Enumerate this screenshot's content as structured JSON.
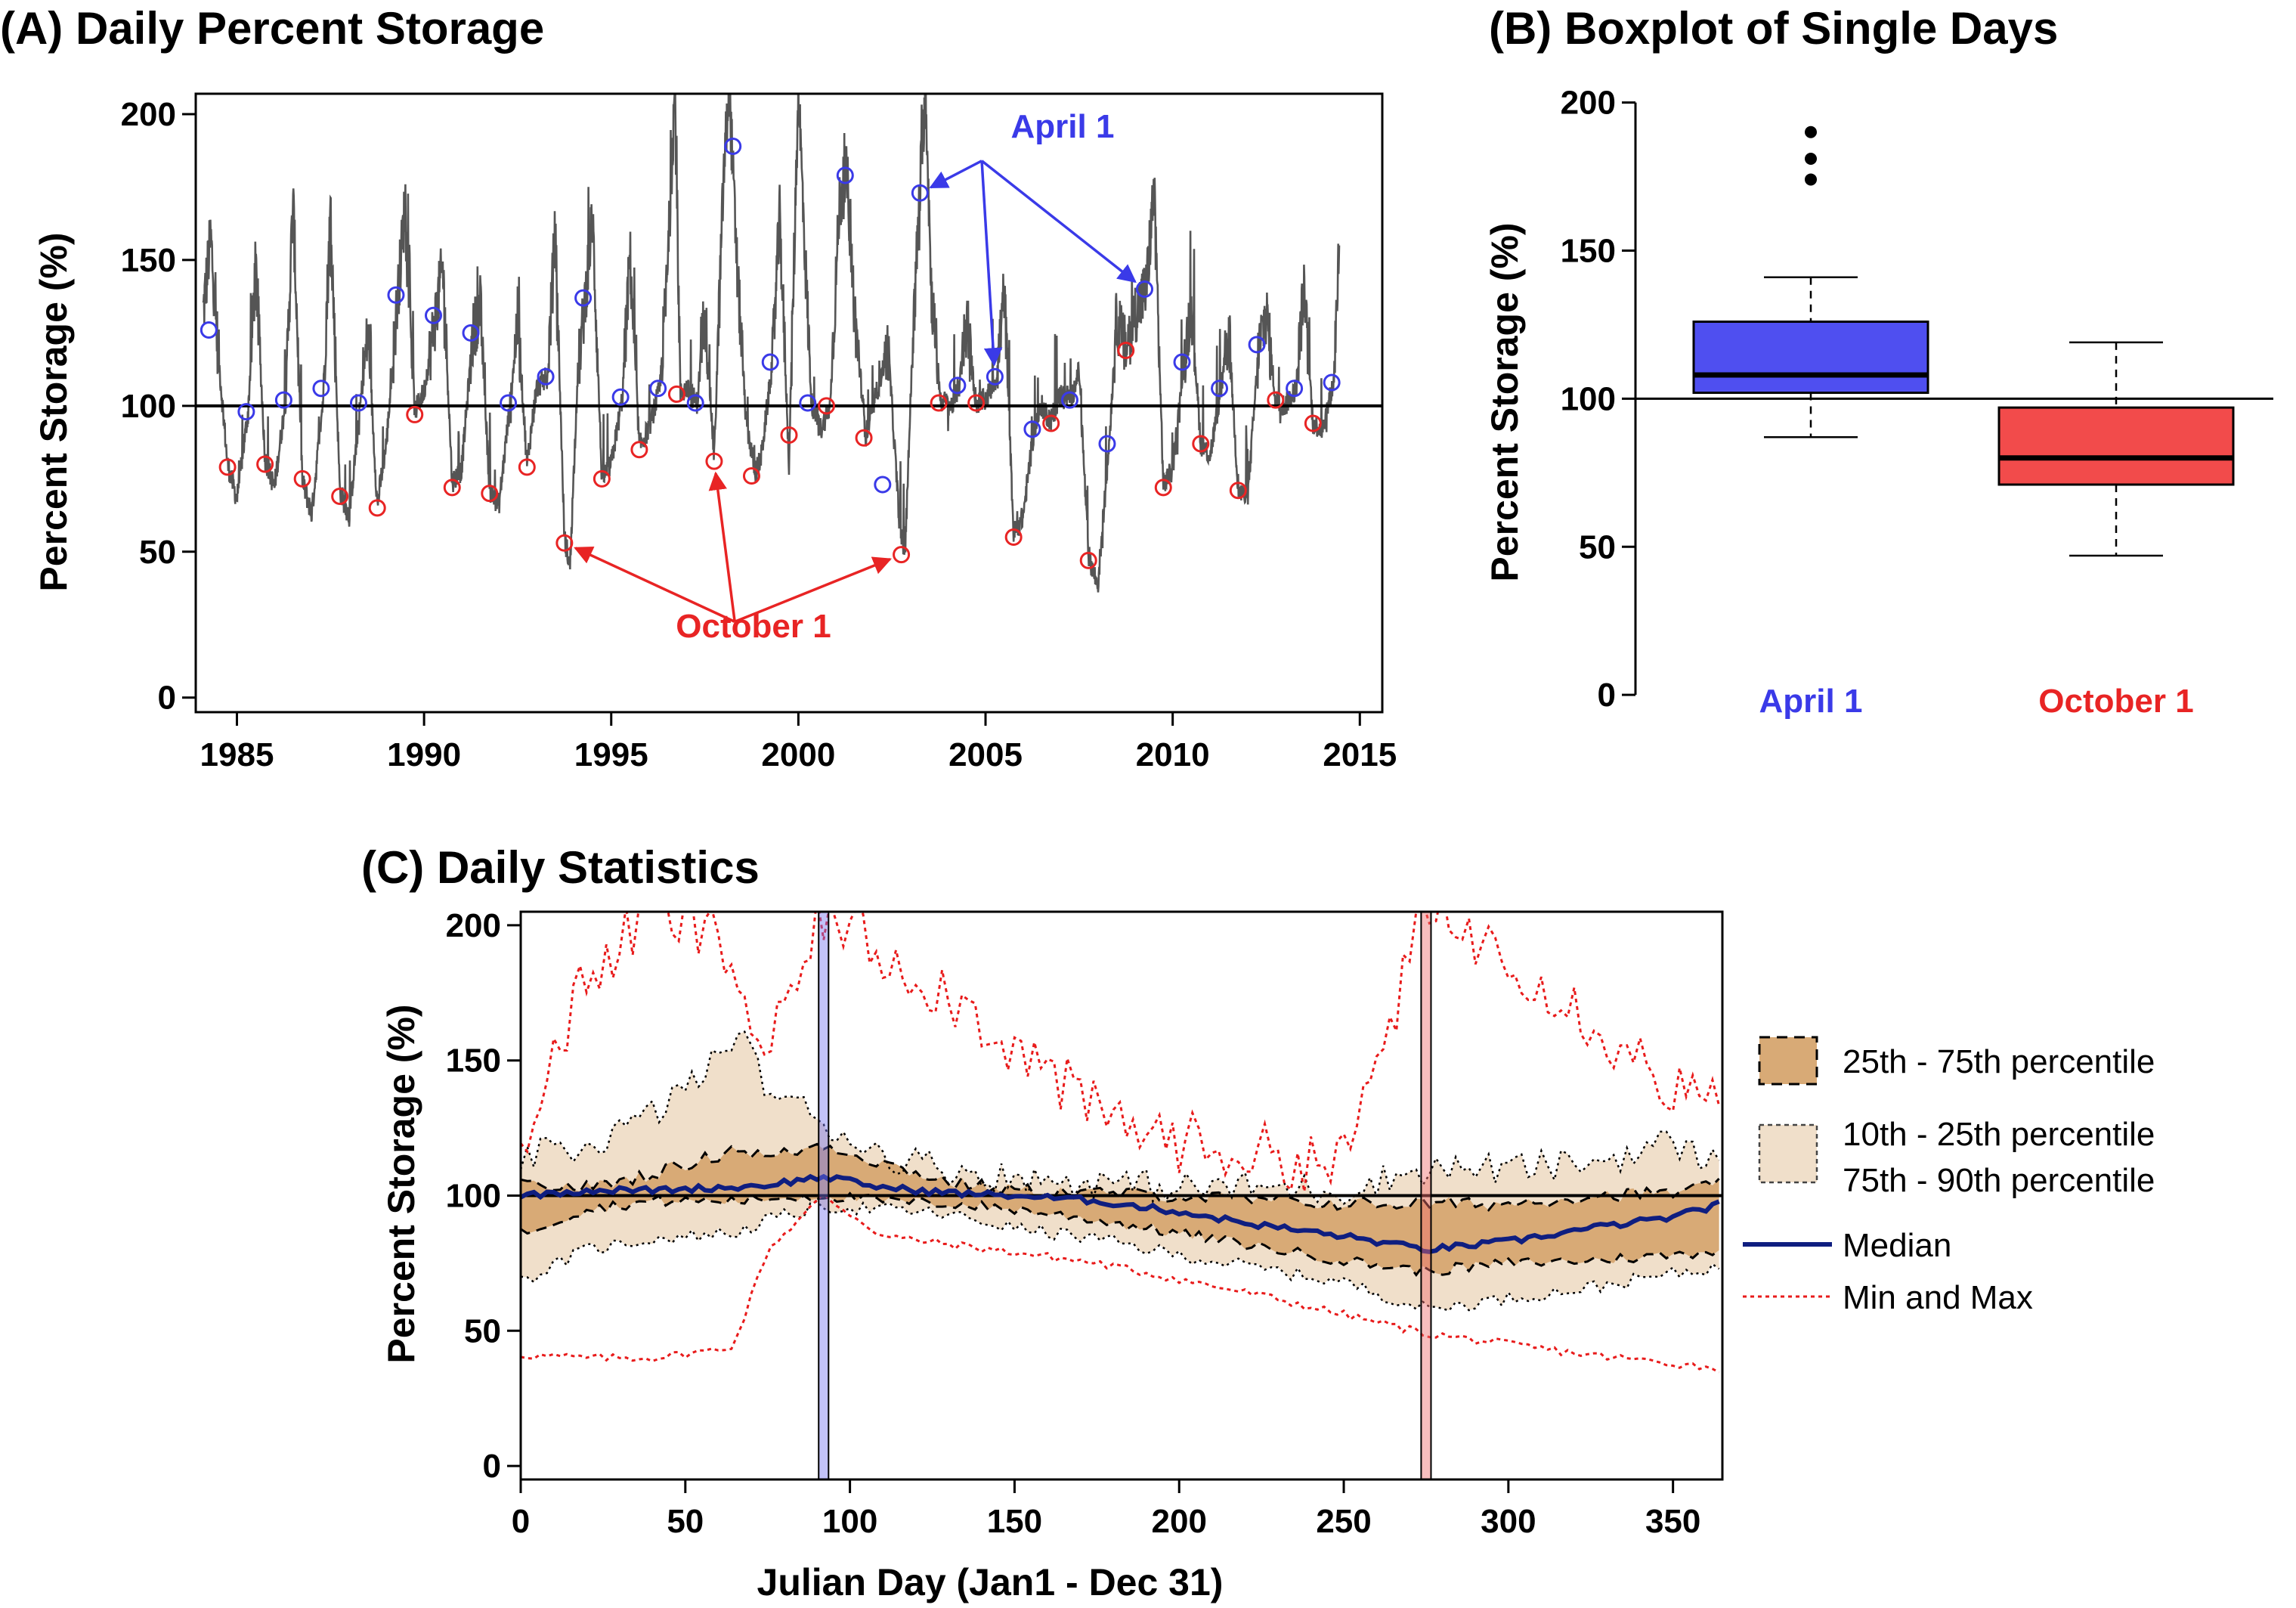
{
  "figure": {
    "panel_a": {
      "title": "(A) Daily Percent Storage",
      "ylabel": "Percent Storage (%)",
      "annotations": {
        "april": "April 1",
        "october": "October 1"
      }
    },
    "panel_b": {
      "title": "(B) Boxplot of Single Days",
      "ylabel": "Percent Storage (%)"
    },
    "panel_c": {
      "title": "(C) Daily Statistics",
      "ylabel": "Percent Storage (%)",
      "xlabel": "Julian Day (Jan1 - Dec 31)",
      "legend": {
        "iqr": "25th - 75th percentile",
        "outer_1": "10th - 25th percentile",
        "outer_2": "75th - 90th percentile",
        "median": "Median",
        "minmax": "Min and Max"
      }
    }
  },
  "colors": {
    "april": "#3a3ae8",
    "october": "#e82424",
    "april_box": "#4f4ff0",
    "october_box": "#f24b4b",
    "band_inner": "#d8aa76",
    "band_outer": "#f0dfca",
    "median": "#0f1e80",
    "minmax": "#e81b1b",
    "timeseries": "#555555"
  },
  "chart_data": [
    {
      "type": "line",
      "panel": "A",
      "title": "(A) Daily Percent Storage",
      "xlabel": "",
      "ylabel": "Percent Storage (%)",
      "xlim": [
        1983.9,
        2015.6
      ],
      "ylim": [
        -5,
        207
      ],
      "xticks": [
        1985,
        1990,
        1995,
        2000,
        2005,
        2010,
        2015
      ],
      "yticks": [
        0,
        50,
        100,
        150,
        200
      ],
      "reference_line": 100,
      "grid": false,
      "anchors": [
        [
          1984.1,
          132
        ],
        [
          1984.3,
          158
        ],
        [
          1984.5,
          118
        ],
        [
          1984.75,
          80
        ],
        [
          1985.0,
          68
        ],
        [
          1985.3,
          98
        ],
        [
          1985.5,
          148
        ],
        [
          1985.75,
          82
        ],
        [
          1986.0,
          72
        ],
        [
          1986.3,
          102
        ],
        [
          1986.5,
          170
        ],
        [
          1986.75,
          74
        ],
        [
          1987.0,
          63
        ],
        [
          1987.3,
          102
        ],
        [
          1987.5,
          166
        ],
        [
          1987.75,
          71
        ],
        [
          1988.0,
          62
        ],
        [
          1988.3,
          101
        ],
        [
          1988.5,
          125
        ],
        [
          1988.75,
          66
        ],
        [
          1989.0,
          88
        ],
        [
          1989.3,
          138
        ],
        [
          1989.5,
          170
        ],
        [
          1989.75,
          98
        ],
        [
          1990.0,
          105
        ],
        [
          1990.3,
          130
        ],
        [
          1990.5,
          148
        ],
        [
          1990.75,
          74
        ],
        [
          1991.0,
          78
        ],
        [
          1991.3,
          124
        ],
        [
          1991.5,
          135
        ],
        [
          1991.75,
          71
        ],
        [
          1992.0,
          66
        ],
        [
          1992.3,
          101
        ],
        [
          1992.5,
          130
        ],
        [
          1992.75,
          80
        ],
        [
          1993.0,
          106
        ],
        [
          1993.3,
          110
        ],
        [
          1993.5,
          160
        ],
        [
          1993.75,
          55
        ],
        [
          1993.9,
          45
        ],
        [
          1994.1,
          110
        ],
        [
          1994.3,
          136
        ],
        [
          1994.5,
          165
        ],
        [
          1994.75,
          75
        ],
        [
          1995.0,
          80
        ],
        [
          1995.3,
          103
        ],
        [
          1995.5,
          152
        ],
        [
          1995.75,
          86
        ],
        [
          1996.0,
          92
        ],
        [
          1996.3,
          106
        ],
        [
          1996.5,
          145
        ],
        [
          1996.7,
          210
        ],
        [
          1996.85,
          104
        ],
        [
          1997.0,
          106
        ],
        [
          1997.3,
          101
        ],
        [
          1997.5,
          134
        ],
        [
          1997.75,
          82
        ],
        [
          1998.0,
          178
        ],
        [
          1998.15,
          210
        ],
        [
          1998.35,
          150
        ],
        [
          1998.6,
          95
        ],
        [
          1998.85,
          77
        ],
        [
          1999.0,
          82
        ],
        [
          1999.3,
          114
        ],
        [
          1999.5,
          165
        ],
        [
          1999.75,
          80
        ],
        [
          2000.0,
          210
        ],
        [
          2000.15,
          160
        ],
        [
          2000.35,
          101
        ],
        [
          2000.6,
          92
        ],
        [
          2000.85,
          100
        ],
        [
          2001.1,
          170
        ],
        [
          2001.3,
          179
        ],
        [
          2001.5,
          132
        ],
        [
          2001.8,
          90
        ],
        [
          2002.1,
          105
        ],
        [
          2002.4,
          120
        ],
        [
          2002.7,
          60
        ],
        [
          2002.85,
          49
        ],
        [
          2003.05,
          120
        ],
        [
          2003.25,
          175
        ],
        [
          2003.4,
          210
        ],
        [
          2003.55,
          140
        ],
        [
          2003.8,
          102
        ],
        [
          2004.1,
          100
        ],
        [
          2004.3,
          107
        ],
        [
          2004.5,
          128
        ],
        [
          2004.75,
          101
        ],
        [
          2005.0,
          102
        ],
        [
          2005.3,
          110
        ],
        [
          2005.5,
          140
        ],
        [
          2005.75,
          56
        ],
        [
          2006.0,
          62
        ],
        [
          2006.3,
          92
        ],
        [
          2006.5,
          100
        ],
        [
          2006.75,
          95
        ],
        [
          2007.0,
          104
        ],
        [
          2007.3,
          103
        ],
        [
          2007.5,
          112
        ],
        [
          2007.75,
          49
        ],
        [
          2008.0,
          38
        ],
        [
          2008.3,
          87
        ],
        [
          2008.5,
          130
        ],
        [
          2008.75,
          119
        ],
        [
          2009.0,
          132
        ],
        [
          2009.3,
          140
        ],
        [
          2009.5,
          175
        ],
        [
          2009.75,
          73
        ],
        [
          2010.0,
          78
        ],
        [
          2010.3,
          115
        ],
        [
          2010.5,
          135
        ],
        [
          2010.75,
          87
        ],
        [
          2011.0,
          83
        ],
        [
          2011.3,
          106
        ],
        [
          2011.5,
          125
        ],
        [
          2011.75,
          71
        ],
        [
          2012.0,
          68
        ],
        [
          2012.3,
          120
        ],
        [
          2012.5,
          132
        ],
        [
          2012.75,
          102
        ],
        [
          2013.0,
          100
        ],
        [
          2013.3,
          106
        ],
        [
          2013.5,
          140
        ],
        [
          2013.75,
          94
        ],
        [
          2014.0,
          92
        ],
        [
          2014.3,
          108
        ],
        [
          2014.45,
          155
        ]
      ],
      "april_1": [
        [
          1984.25,
          126
        ],
        [
          1985.25,
          98
        ],
        [
          1986.25,
          102
        ],
        [
          1987.25,
          106
        ],
        [
          1988.25,
          101
        ],
        [
          1989.25,
          138
        ],
        [
          1990.25,
          131
        ],
        [
          1991.25,
          125
        ],
        [
          1992.25,
          101
        ],
        [
          1993.25,
          110
        ],
        [
          1994.25,
          137
        ],
        [
          1995.25,
          103
        ],
        [
          1996.25,
          106
        ],
        [
          1997.25,
          101
        ],
        [
          1998.25,
          189
        ],
        [
          1999.25,
          115
        ],
        [
          2000.25,
          101
        ],
        [
          2001.25,
          179
        ],
        [
          2002.25,
          73
        ],
        [
          2003.25,
          173
        ],
        [
          2004.25,
          107
        ],
        [
          2005.25,
          110
        ],
        [
          2006.25,
          92
        ],
        [
          2007.25,
          102
        ],
        [
          2008.25,
          87
        ],
        [
          2009.25,
          140
        ],
        [
          2010.25,
          115
        ],
        [
          2011.25,
          106
        ],
        [
          2012.25,
          121
        ],
        [
          2013.25,
          106
        ],
        [
          2014.25,
          108
        ]
      ],
      "october_1": [
        [
          1984.75,
          79
        ],
        [
          1985.75,
          80
        ],
        [
          1986.75,
          75
        ],
        [
          1987.75,
          69
        ],
        [
          1988.75,
          65
        ],
        [
          1989.75,
          97
        ],
        [
          1990.75,
          72
        ],
        [
          1991.75,
          70
        ],
        [
          1992.75,
          79
        ],
        [
          1993.75,
          53
        ],
        [
          1994.75,
          75
        ],
        [
          1995.75,
          85
        ],
        [
          1996.75,
          104
        ],
        [
          1997.75,
          81
        ],
        [
          1998.75,
          76
        ],
        [
          1999.75,
          90
        ],
        [
          2000.75,
          100
        ],
        [
          2001.75,
          89
        ],
        [
          2002.75,
          49
        ],
        [
          2003.75,
          101
        ],
        [
          2004.75,
          101
        ],
        [
          2005.75,
          55
        ],
        [
          2006.75,
          94
        ],
        [
          2007.75,
          47
        ],
        [
          2008.75,
          119
        ],
        [
          2009.75,
          72
        ],
        [
          2010.75,
          87
        ],
        [
          2011.75,
          71
        ],
        [
          2012.75,
          102
        ],
        [
          2013.75,
          94
        ]
      ]
    },
    {
      "type": "box",
      "panel": "B",
      "title": "(B) Boxplot of Single Days",
      "ylabel": "Percent Storage (%)",
      "ylim": [
        -2,
        205
      ],
      "yticks": [
        0,
        50,
        100,
        150,
        200
      ],
      "reference_line": 100,
      "categories": [
        "April 1",
        "October 1"
      ],
      "boxes": [
        {
          "name": "April 1",
          "whisker_low": 87,
          "q1": 102,
          "median": 108,
          "q3": 126,
          "whisker_high": 141,
          "outliers": [
            174,
            181,
            190
          ]
        },
        {
          "name": "October 1",
          "whisker_low": 47,
          "q1": 71,
          "median": 80,
          "q3": 97,
          "whisker_high": 119,
          "outliers": []
        }
      ]
    },
    {
      "type": "area",
      "panel": "C",
      "title": "(C) Daily Statistics",
      "xlabel": "Julian Day (Jan1 - Dec 31)",
      "ylabel": "Percent Storage (%)",
      "xlim": [
        0,
        365
      ],
      "ylim": [
        -5,
        205
      ],
      "xticks": [
        0,
        50,
        100,
        150,
        200,
        250,
        300,
        350
      ],
      "yticks": [
        0,
        50,
        100,
        150,
        200
      ],
      "reference_line": 100,
      "highlight_days": [
        92,
        275
      ],
      "x": [
        0,
        20,
        40,
        60,
        65,
        75,
        92,
        110,
        130,
        150,
        175,
        200,
        225,
        250,
        275,
        300,
        325,
        350,
        365
      ],
      "series": [
        {
          "name": "Min",
          "values": [
            41,
            40,
            40,
            43,
            45,
            80,
            100,
            85,
            82,
            79,
            75,
            69,
            63,
            56,
            49,
            45,
            41,
            38,
            36
          ]
        },
        {
          "name": "10th percentile",
          "values": [
            68,
            80,
            84,
            86,
            86,
            91,
            96,
            95,
            93,
            88,
            84,
            78,
            73,
            68,
            58,
            62,
            66,
            71,
            74
          ]
        },
        {
          "name": "25th percentile",
          "values": [
            86,
            95,
            98,
            98,
            98,
            99,
            100,
            98,
            97,
            95,
            91,
            86,
            81,
            76,
            72,
            75,
            76,
            78,
            80
          ]
        },
        {
          "name": "Median",
          "values": [
            100,
            102,
            102,
            103,
            103,
            104,
            107,
            103,
            101,
            100,
            98,
            94,
            89,
            85,
            80,
            83,
            88,
            92,
            97
          ]
        },
        {
          "name": "75th percentile",
          "values": [
            104,
            103,
            108,
            115,
            118,
            114,
            119,
            112,
            105,
            102,
            101,
            100,
            98,
            97,
            97,
            97,
            100,
            101,
            104
          ]
        },
        {
          "name": "90th percentile",
          "values": [
            114,
            118,
            130,
            150,
            162,
            140,
            127,
            115,
            110,
            106,
            105,
            103,
            103,
            102,
            110,
            110,
            112,
            120,
            110
          ]
        },
        {
          "name": "Max",
          "values": [
            121,
            180,
            205,
            195,
            182,
            150,
            205,
            190,
            175,
            155,
            130,
            120,
            115,
            112,
            205,
            190,
            165,
            140,
            130
          ]
        }
      ]
    }
  ]
}
